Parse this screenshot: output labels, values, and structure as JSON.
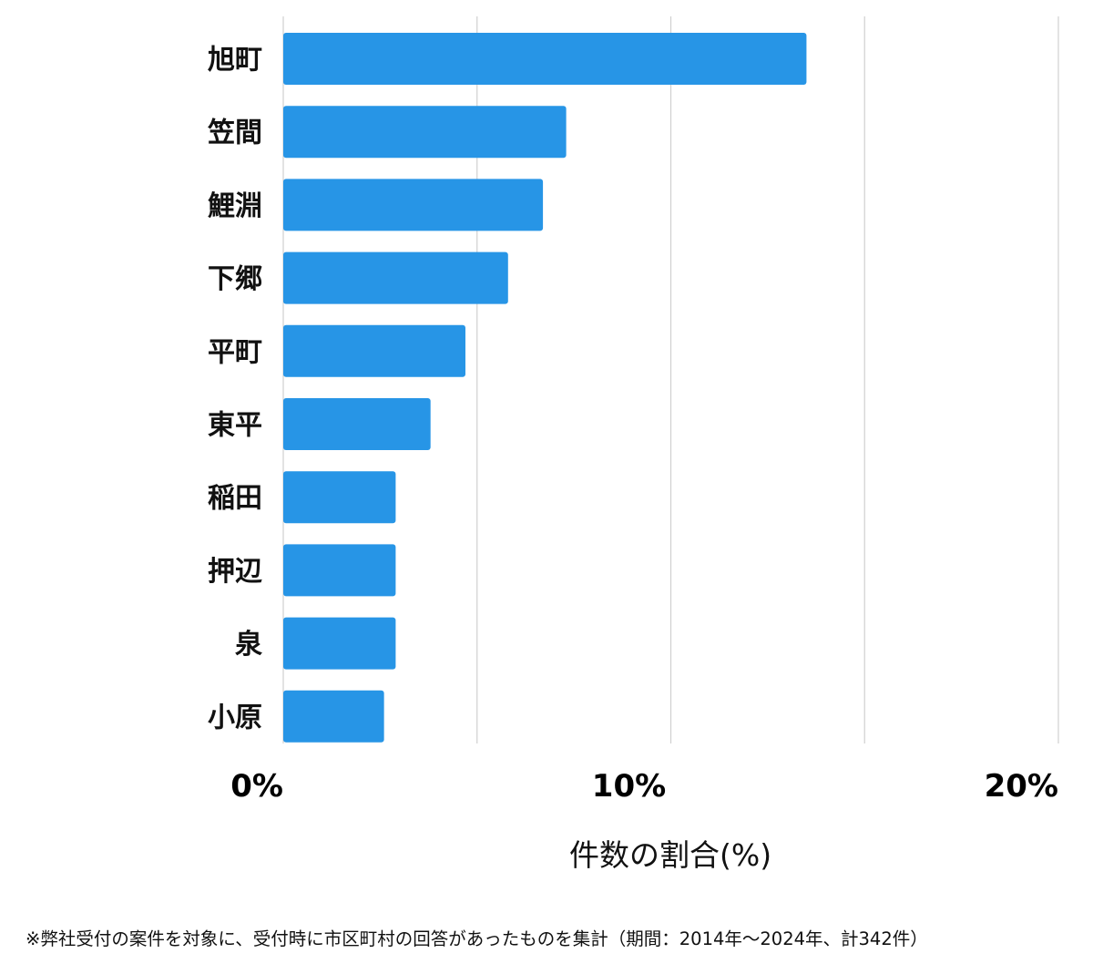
{
  "chart_data": {
    "type": "bar",
    "orientation": "horizontal",
    "categories": [
      "旭町",
      "笠間",
      "鯉淵",
      "下郷",
      "平町",
      "東平",
      "稲田",
      "押辺",
      "泉",
      "小原"
    ],
    "values": [
      13.5,
      7.3,
      6.7,
      5.8,
      4.7,
      3.8,
      2.9,
      2.9,
      2.9,
      2.6
    ],
    "xlim": [
      0,
      20
    ],
    "ticks": [
      0,
      10,
      20
    ],
    "tick_labels": [
      "0%",
      "10%",
      "20%"
    ],
    "gridlines": [
      0,
      5,
      10,
      15,
      20
    ],
    "xlabel": "件数の割合(%)",
    "ylabel": "",
    "grid": true,
    "bar_color": "#2795E6",
    "grid_color": "#d0d0d0"
  },
  "footnote": "※弊社受付の案件を対象に、受付時に市区町村の回答があったものを集計（期間：2014年〜2024年、計342件）"
}
